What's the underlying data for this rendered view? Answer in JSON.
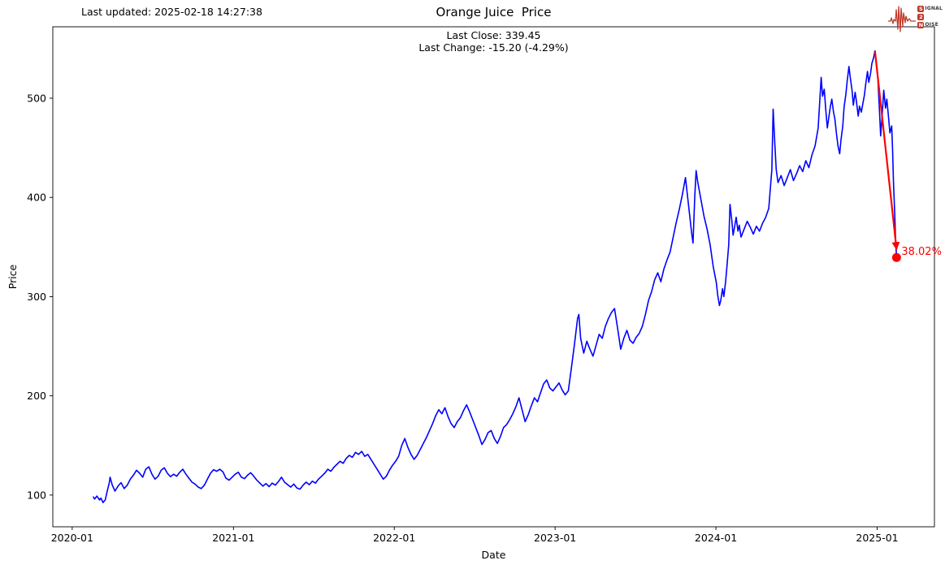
{
  "header": {
    "last_updated": "Last updated: 2025-02-18 14:27:38",
    "title": "Orange Juice  Price",
    "last_close": "Last Close: 339.45",
    "last_change": "Last Change: -15.20 (-4.29%)"
  },
  "logo": {
    "color": "#c0392b",
    "rows": [
      {
        "badge": "S",
        "text": "IGNAL"
      },
      {
        "badge": "2",
        "text": ""
      },
      {
        "badge": "N",
        "text": "OISE"
      }
    ]
  },
  "chart_data": {
    "type": "line",
    "title": "Orange Juice  Price",
    "xlabel": "Date",
    "ylabel": "Price",
    "grid": false,
    "legend": "none",
    "line_color": "#0000ff",
    "xlim": [
      "2019-11-18",
      "2025-05-11"
    ],
    "ylim": [
      68,
      572
    ],
    "x_ticks": [
      "2020-01",
      "2021-01",
      "2022-01",
      "2023-01",
      "2024-01",
      "2025-01"
    ],
    "x_tick_dates": [
      "2020-01-01",
      "2021-01-01",
      "2022-01-01",
      "2023-01-01",
      "2024-01-01",
      "2025-01-01"
    ],
    "y_ticks": [
      100,
      200,
      300,
      400,
      500
    ],
    "annotation": {
      "label": "38.02%",
      "color": "#ff0000",
      "from": [
        "2024-12-27",
        547.7
      ],
      "to": [
        "2025-02-14",
        339.45
      ]
    },
    "series": [
      [
        "2020-02-18",
        98
      ],
      [
        "2020-02-21",
        96
      ],
      [
        "2020-02-26",
        99
      ],
      [
        "2020-03-03",
        95
      ],
      [
        "2020-03-06",
        97
      ],
      [
        "2020-03-11",
        92.5
      ],
      [
        "2020-03-16",
        95
      ],
      [
        "2020-03-20",
        103
      ],
      [
        "2020-03-25",
        112
      ],
      [
        "2020-03-27",
        118
      ],
      [
        "2020-04-01",
        110
      ],
      [
        "2020-04-07",
        104
      ],
      [
        "2020-04-14",
        109
      ],
      [
        "2020-04-21",
        112.5
      ],
      [
        "2020-04-28",
        106.5
      ],
      [
        "2020-05-05",
        110
      ],
      [
        "2020-05-12",
        116
      ],
      [
        "2020-05-19",
        120
      ],
      [
        "2020-05-26",
        125
      ],
      [
        "2020-06-02",
        122
      ],
      [
        "2020-06-09",
        118
      ],
      [
        "2020-06-16",
        126
      ],
      [
        "2020-06-23",
        128.5
      ],
      [
        "2020-06-30",
        121
      ],
      [
        "2020-07-07",
        116
      ],
      [
        "2020-07-14",
        119
      ],
      [
        "2020-07-21",
        125
      ],
      [
        "2020-07-28",
        127.5
      ],
      [
        "2020-08-04",
        122
      ],
      [
        "2020-08-11",
        118.5
      ],
      [
        "2020-08-18",
        121
      ],
      [
        "2020-08-25",
        119
      ],
      [
        "2020-09-01",
        123
      ],
      [
        "2020-09-08",
        126
      ],
      [
        "2020-09-15",
        121
      ],
      [
        "2020-09-22",
        117
      ],
      [
        "2020-09-29",
        113
      ],
      [
        "2020-10-06",
        111
      ],
      [
        "2020-10-13",
        108
      ],
      [
        "2020-10-20",
        106.5
      ],
      [
        "2020-10-27",
        110
      ],
      [
        "2020-11-03",
        116
      ],
      [
        "2020-11-10",
        122
      ],
      [
        "2020-11-17",
        125.5
      ],
      [
        "2020-11-24",
        124
      ],
      [
        "2020-12-01",
        126
      ],
      [
        "2020-12-08",
        123.5
      ],
      [
        "2020-12-15",
        117
      ],
      [
        "2020-12-22",
        115
      ],
      [
        "2020-12-29",
        118
      ],
      [
        "2021-01-05",
        121
      ],
      [
        "2021-01-12",
        123
      ],
      [
        "2021-01-19",
        118
      ],
      [
        "2021-01-26",
        116.5
      ],
      [
        "2021-02-02",
        120
      ],
      [
        "2021-02-09",
        122.5
      ],
      [
        "2021-02-16",
        119
      ],
      [
        "2021-02-23",
        115
      ],
      [
        "2021-03-02",
        112
      ],
      [
        "2021-03-09",
        109
      ],
      [
        "2021-03-16",
        111.5
      ],
      [
        "2021-03-23",
        108.5
      ],
      [
        "2021-03-30",
        112
      ],
      [
        "2021-04-06",
        110
      ],
      [
        "2021-04-13",
        113.5
      ],
      [
        "2021-04-20",
        118
      ],
      [
        "2021-04-27",
        113
      ],
      [
        "2021-05-04",
        110.5
      ],
      [
        "2021-05-11",
        108
      ],
      [
        "2021-05-18",
        111
      ],
      [
        "2021-05-25",
        107
      ],
      [
        "2021-06-01",
        106
      ],
      [
        "2021-06-08",
        110
      ],
      [
        "2021-06-15",
        113
      ],
      [
        "2021-06-22",
        110.5
      ],
      [
        "2021-06-29",
        114
      ],
      [
        "2021-07-06",
        112
      ],
      [
        "2021-07-13",
        116
      ],
      [
        "2021-07-20",
        119
      ],
      [
        "2021-07-27",
        122
      ],
      [
        "2021-08-03",
        126
      ],
      [
        "2021-08-10",
        124
      ],
      [
        "2021-08-17",
        128
      ],
      [
        "2021-08-24",
        131
      ],
      [
        "2021-08-31",
        134
      ],
      [
        "2021-09-07",
        132
      ],
      [
        "2021-09-14",
        137
      ],
      [
        "2021-09-21",
        140
      ],
      [
        "2021-09-28",
        138
      ],
      [
        "2021-10-05",
        143
      ],
      [
        "2021-10-12",
        141
      ],
      [
        "2021-10-19",
        144
      ],
      [
        "2021-10-26",
        139
      ],
      [
        "2021-11-02",
        141
      ],
      [
        "2021-11-09",
        136
      ],
      [
        "2021-11-16",
        131
      ],
      [
        "2021-11-23",
        126
      ],
      [
        "2021-11-30",
        121
      ],
      [
        "2021-12-07",
        116
      ],
      [
        "2021-12-14",
        119
      ],
      [
        "2021-12-21",
        125
      ],
      [
        "2021-12-28",
        130
      ],
      [
        "2022-01-04",
        134
      ],
      [
        "2022-01-11",
        139
      ],
      [
        "2022-01-18",
        150
      ],
      [
        "2022-01-25",
        157
      ],
      [
        "2022-02-01",
        148
      ],
      [
        "2022-02-08",
        141
      ],
      [
        "2022-02-15",
        136
      ],
      [
        "2022-02-22",
        140
      ],
      [
        "2022-03-01",
        146
      ],
      [
        "2022-03-08",
        152
      ],
      [
        "2022-03-15",
        158
      ],
      [
        "2022-03-22",
        165
      ],
      [
        "2022-03-29",
        172
      ],
      [
        "2022-04-05",
        180
      ],
      [
        "2022-04-12",
        186
      ],
      [
        "2022-04-19",
        182
      ],
      [
        "2022-04-26",
        188
      ],
      [
        "2022-05-03",
        179
      ],
      [
        "2022-05-10",
        172
      ],
      [
        "2022-05-17",
        168
      ],
      [
        "2022-05-24",
        174
      ],
      [
        "2022-05-31",
        178
      ],
      [
        "2022-06-07",
        185
      ],
      [
        "2022-06-14",
        191
      ],
      [
        "2022-06-21",
        184
      ],
      [
        "2022-06-28",
        176
      ],
      [
        "2022-07-05",
        168
      ],
      [
        "2022-07-12",
        160
      ],
      [
        "2022-07-19",
        151
      ],
      [
        "2022-07-26",
        156
      ],
      [
        "2022-08-02",
        163
      ],
      [
        "2022-08-09",
        165
      ],
      [
        "2022-08-16",
        157
      ],
      [
        "2022-08-23",
        152
      ],
      [
        "2022-08-30",
        159
      ],
      [
        "2022-09-06",
        168
      ],
      [
        "2022-09-13",
        171
      ],
      [
        "2022-09-20",
        176
      ],
      [
        "2022-09-27",
        182
      ],
      [
        "2022-10-04",
        189
      ],
      [
        "2022-10-11",
        198
      ],
      [
        "2022-10-18",
        186
      ],
      [
        "2022-10-25",
        174
      ],
      [
        "2022-11-01",
        181
      ],
      [
        "2022-11-08",
        190
      ],
      [
        "2022-11-15",
        198
      ],
      [
        "2022-11-22",
        194
      ],
      [
        "2022-11-29",
        203
      ],
      [
        "2022-12-06",
        212
      ],
      [
        "2022-12-13",
        216
      ],
      [
        "2022-12-20",
        208
      ],
      [
        "2022-12-27",
        205
      ],
      [
        "2023-01-03",
        209
      ],
      [
        "2023-01-10",
        213
      ],
      [
        "2023-01-17",
        206
      ],
      [
        "2023-01-24",
        201
      ],
      [
        "2023-01-31",
        205
      ],
      [
        "2023-02-07",
        228
      ],
      [
        "2023-02-14",
        252
      ],
      [
        "2023-02-21",
        278
      ],
      [
        "2023-02-24",
        282
      ],
      [
        "2023-02-28",
        258
      ],
      [
        "2023-03-07",
        243
      ],
      [
        "2023-03-14",
        255
      ],
      [
        "2023-03-21",
        247
      ],
      [
        "2023-03-28",
        240
      ],
      [
        "2023-04-04",
        251
      ],
      [
        "2023-04-11",
        262
      ],
      [
        "2023-04-18",
        258
      ],
      [
        "2023-04-25",
        270
      ],
      [
        "2023-05-02",
        278
      ],
      [
        "2023-05-09",
        284
      ],
      [
        "2023-05-16",
        288
      ],
      [
        "2023-05-23",
        268
      ],
      [
        "2023-05-30",
        247
      ],
      [
        "2023-06-06",
        258
      ],
      [
        "2023-06-13",
        266
      ],
      [
        "2023-06-20",
        256
      ],
      [
        "2023-06-27",
        253
      ],
      [
        "2023-07-04",
        259
      ],
      [
        "2023-07-11",
        263
      ],
      [
        "2023-07-18",
        270
      ],
      [
        "2023-07-25",
        282
      ],
      [
        "2023-08-01",
        296
      ],
      [
        "2023-08-08",
        305
      ],
      [
        "2023-08-15",
        317
      ],
      [
        "2023-08-22",
        324
      ],
      [
        "2023-08-29",
        315
      ],
      [
        "2023-09-05",
        328
      ],
      [
        "2023-09-12",
        337
      ],
      [
        "2023-09-19",
        345
      ],
      [
        "2023-09-26",
        360
      ],
      [
        "2023-10-03",
        375
      ],
      [
        "2023-10-10",
        388
      ],
      [
        "2023-10-17",
        403
      ],
      [
        "2023-10-24",
        420
      ],
      [
        "2023-10-31",
        392
      ],
      [
        "2023-11-07",
        364
      ],
      [
        "2023-11-10",
        354
      ],
      [
        "2023-11-14",
        400
      ],
      [
        "2023-11-17",
        427
      ],
      [
        "2023-11-21",
        415
      ],
      [
        "2023-11-28",
        398
      ],
      [
        "2023-12-05",
        381
      ],
      [
        "2023-12-12",
        368
      ],
      [
        "2023-12-19",
        352
      ],
      [
        "2023-12-26",
        330
      ],
      [
        "2024-01-02",
        314
      ],
      [
        "2024-01-05",
        302
      ],
      [
        "2024-01-09",
        291
      ],
      [
        "2024-01-12",
        296
      ],
      [
        "2024-01-16",
        308
      ],
      [
        "2024-01-19",
        300
      ],
      [
        "2024-01-23",
        315
      ],
      [
        "2024-01-26",
        330
      ],
      [
        "2024-01-30",
        352
      ],
      [
        "2024-02-02",
        393
      ],
      [
        "2024-02-06",
        377
      ],
      [
        "2024-02-09",
        362
      ],
      [
        "2024-02-13",
        372
      ],
      [
        "2024-02-16",
        380
      ],
      [
        "2024-02-20",
        366
      ],
      [
        "2024-02-23",
        372
      ],
      [
        "2024-02-27",
        360
      ],
      [
        "2024-03-05",
        368
      ],
      [
        "2024-03-12",
        376
      ],
      [
        "2024-03-19",
        370
      ],
      [
        "2024-03-26",
        363
      ],
      [
        "2024-04-02",
        371
      ],
      [
        "2024-04-09",
        366
      ],
      [
        "2024-04-16",
        374
      ],
      [
        "2024-04-23",
        380
      ],
      [
        "2024-04-30",
        389
      ],
      [
        "2024-05-07",
        428
      ],
      [
        "2024-05-10",
        489
      ],
      [
        "2024-05-14",
        452
      ],
      [
        "2024-05-17",
        428
      ],
      [
        "2024-05-21",
        415
      ],
      [
        "2024-05-28",
        422
      ],
      [
        "2024-06-04",
        412
      ],
      [
        "2024-06-11",
        420
      ],
      [
        "2024-06-18",
        428
      ],
      [
        "2024-06-25",
        417
      ],
      [
        "2024-07-02",
        424
      ],
      [
        "2024-07-09",
        432
      ],
      [
        "2024-07-16",
        426
      ],
      [
        "2024-07-23",
        437
      ],
      [
        "2024-07-30",
        430
      ],
      [
        "2024-08-06",
        443
      ],
      [
        "2024-08-13",
        452
      ],
      [
        "2024-08-20",
        470
      ],
      [
        "2024-08-23",
        492
      ],
      [
        "2024-08-27",
        521
      ],
      [
        "2024-08-30",
        502
      ],
      [
        "2024-09-03",
        509
      ],
      [
        "2024-09-06",
        490
      ],
      [
        "2024-09-10",
        470
      ],
      [
        "2024-09-13",
        480
      ],
      [
        "2024-09-17",
        492
      ],
      [
        "2024-09-20",
        499
      ],
      [
        "2024-09-24",
        486
      ],
      [
        "2024-09-27",
        479
      ],
      [
        "2024-10-01",
        463
      ],
      [
        "2024-10-04",
        452
      ],
      [
        "2024-10-08",
        444
      ],
      [
        "2024-10-11",
        458
      ],
      [
        "2024-10-15",
        472
      ],
      [
        "2024-10-18",
        491
      ],
      [
        "2024-10-22",
        504
      ],
      [
        "2024-10-25",
        517
      ],
      [
        "2024-10-29",
        532
      ],
      [
        "2024-11-01",
        521
      ],
      [
        "2024-11-05",
        508
      ],
      [
        "2024-11-08",
        493
      ],
      [
        "2024-11-12",
        506
      ],
      [
        "2024-11-15",
        497
      ],
      [
        "2024-11-19",
        482
      ],
      [
        "2024-11-22",
        492
      ],
      [
        "2024-11-26",
        486
      ],
      [
        "2024-12-03",
        503
      ],
      [
        "2024-12-06",
        514
      ],
      [
        "2024-12-10",
        527
      ],
      [
        "2024-12-13",
        516
      ],
      [
        "2024-12-17",
        525
      ],
      [
        "2024-12-20",
        535
      ],
      [
        "2024-12-24",
        541
      ],
      [
        "2024-12-27",
        547.7
      ],
      [
        "2025-01-02",
        524
      ],
      [
        "2025-01-06",
        490
      ],
      [
        "2025-01-09",
        462
      ],
      [
        "2025-01-13",
        487
      ],
      [
        "2025-01-16",
        508
      ],
      [
        "2025-01-20",
        490
      ],
      [
        "2025-01-23",
        499
      ],
      [
        "2025-01-27",
        480
      ],
      [
        "2025-01-30",
        465
      ],
      [
        "2025-02-03",
        472
      ],
      [
        "2025-02-05",
        448
      ],
      [
        "2025-02-07",
        415
      ],
      [
        "2025-02-10",
        382
      ],
      [
        "2025-02-12",
        354.65
      ],
      [
        "2025-02-14",
        339.45
      ]
    ]
  }
}
